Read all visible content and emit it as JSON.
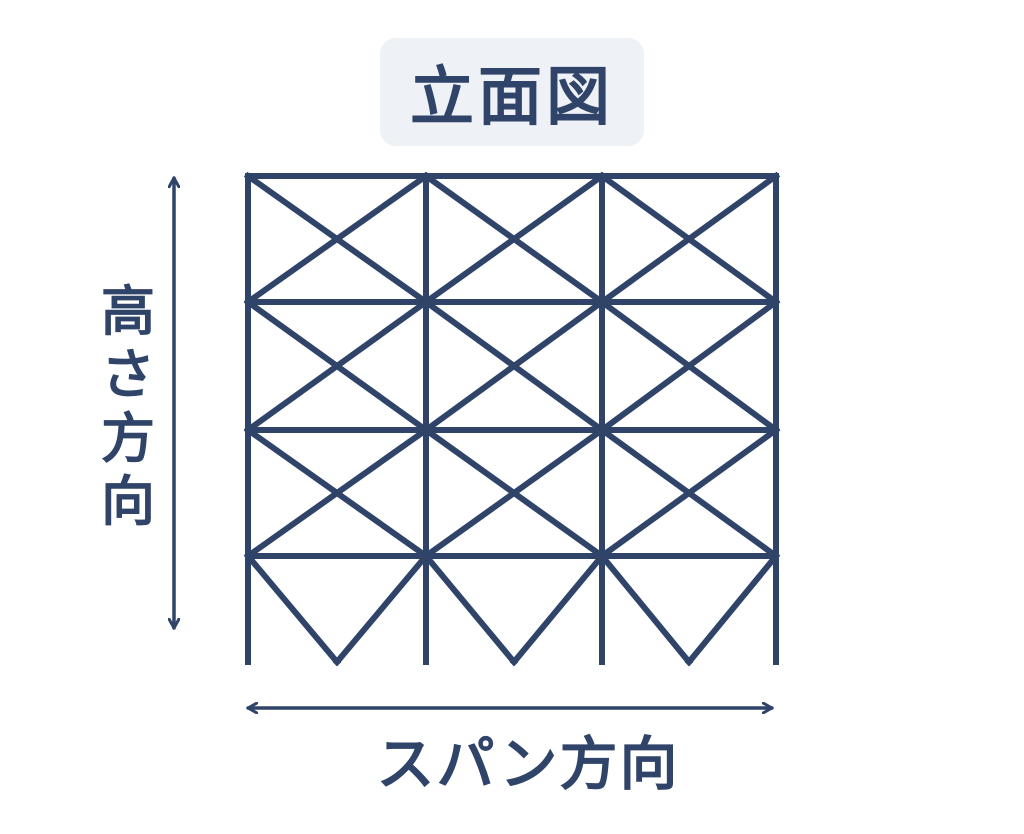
{
  "title": "立面図",
  "vertical_axis_label": [
    "高",
    "さ",
    "方",
    "向"
  ],
  "horizontal_axis_label": "スパン方向",
  "colors": {
    "line": "#2f4468",
    "title_bg": "#eef1f5",
    "background": "#ffffff"
  },
  "grid": {
    "bays": 3,
    "stories": 4
  }
}
